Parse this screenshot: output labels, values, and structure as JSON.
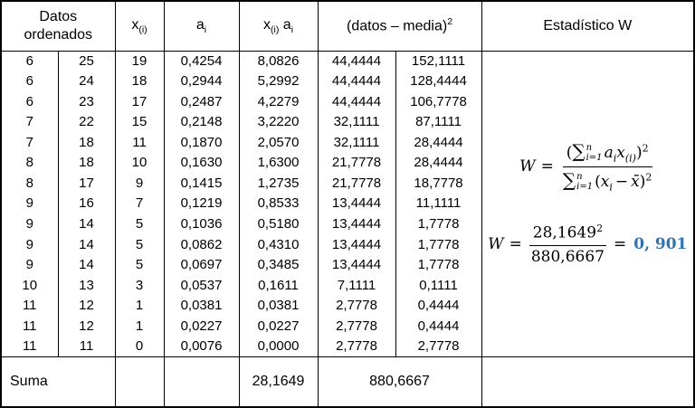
{
  "colors": {
    "result": "#2E74B5",
    "border": "#000000",
    "background": "#ffffff"
  },
  "table": {
    "headers": {
      "datos": "Datos ordenados",
      "x_base": "x",
      "x_sub": "(i)",
      "a_base": "a",
      "a_sub": "i",
      "media": "(datos – media)",
      "media_sup": "2",
      "w": "Estadístico W"
    },
    "rows": [
      [
        "6",
        "25",
        "19",
        "0,4254",
        "8,0826",
        "44,4444",
        "152,1111"
      ],
      [
        "6",
        "24",
        "18",
        "0,2944",
        "5,2992",
        "44,4444",
        "128,4444"
      ],
      [
        "6",
        "23",
        "17",
        "0,2487",
        "4,2279",
        "44,4444",
        "106,7778"
      ],
      [
        "7",
        "22",
        "15",
        "0,2148",
        "3,2220",
        "32,1111",
        "87,1111"
      ],
      [
        "7",
        "18",
        "11",
        "0,1870",
        "2,0570",
        "32,1111",
        "28,4444"
      ],
      [
        "8",
        "18",
        "10",
        "0,1630",
        "1,6300",
        "21,7778",
        "28,4444"
      ],
      [
        "8",
        "17",
        "9",
        "0,1415",
        "1,2735",
        "21,7778",
        "18,7778"
      ],
      [
        "9",
        "16",
        "7",
        "0,1219",
        "0,8533",
        "13,4444",
        "11,1111"
      ],
      [
        "9",
        "14",
        "5",
        "0,1036",
        "0,5180",
        "13,4444",
        "1,7778"
      ],
      [
        "9",
        "14",
        "5",
        "0,0862",
        "0,4310",
        "13,4444",
        "1,7778"
      ],
      [
        "9",
        "14",
        "5",
        "0,0697",
        "0,3485",
        "13,4444",
        "1,7778"
      ],
      [
        "10",
        "13",
        "3",
        "0,0537",
        "0,1611",
        "7,1111",
        "0,1111"
      ],
      [
        "11",
        "12",
        "1",
        "0,0381",
        "0,0381",
        "2,7778",
        "0,4444"
      ],
      [
        "11",
        "12",
        "1",
        "0,0227",
        "0,0227",
        "2,7778",
        "0,4444"
      ],
      [
        "11",
        "11",
        "0",
        "0,0076",
        "0,0000",
        "2,7778",
        "2,7778"
      ]
    ],
    "footer": {
      "label": "Suma",
      "xa_sum": "28,1649",
      "media_sum": "880,6667"
    }
  },
  "formulas": {
    "general": {
      "lhs": "W",
      "eq": "=",
      "num_open": "(",
      "num_sum": "∑",
      "num_sup": "n",
      "num_sub": "i=1",
      "num_a": "a",
      "num_a_sub": "i",
      "num_x": "x",
      "num_x_sub": "(i)",
      "num_close": ")",
      "num_exp": "2",
      "den_sum": "∑",
      "den_sup": "n",
      "den_sub": "i=1",
      "den_open": "(",
      "den_x": "x",
      "den_x_sub": "i",
      "den_minus": "−",
      "den_xbar": "x̄",
      "den_close": ")",
      "den_exp": "2"
    },
    "numeric": {
      "lhs": "W",
      "eq": "=",
      "num": "28,1649",
      "num_exp": "2",
      "den": "880,6667",
      "eq2": "=",
      "result": "0, 901"
    }
  }
}
